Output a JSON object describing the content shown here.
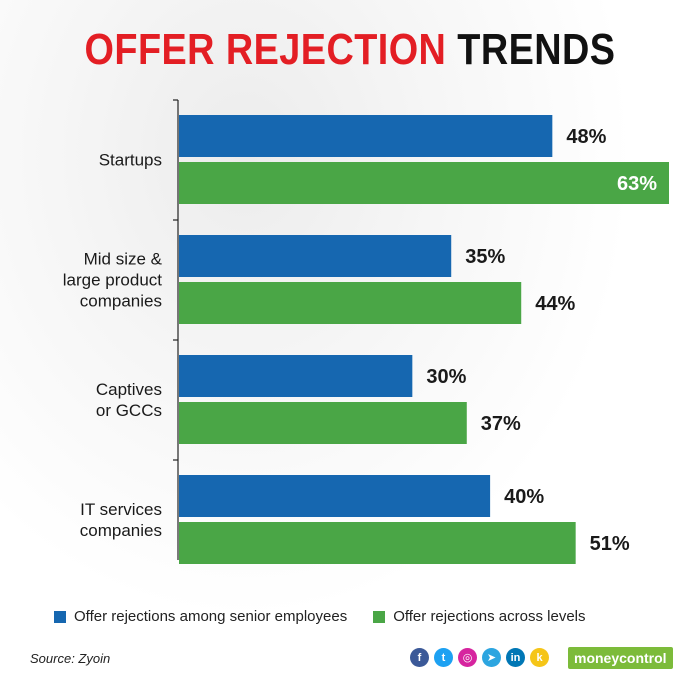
{
  "title": {
    "part1": "OFFER REJECTION",
    "part2": "TRENDS"
  },
  "chart_data": {
    "type": "bar",
    "orientation": "horizontal",
    "categories": [
      [
        "Startups"
      ],
      [
        "Mid size &",
        "large product",
        "companies"
      ],
      [
        "Captives",
        "or GCCs"
      ],
      [
        "IT services",
        "companies"
      ]
    ],
    "series": [
      {
        "name": "Offer rejections among senior employees",
        "values": [
          48,
          35,
          30,
          40
        ],
        "color": "#1667b0"
      },
      {
        "name": "Offer rejections across levels",
        "values": [
          63,
          44,
          37,
          51
        ],
        "color": "#4aa646"
      }
    ],
    "value_suffix": "%",
    "xlim": [
      0,
      63
    ],
    "grid": false,
    "legend_position": "bottom"
  },
  "source": "Source: Zyoin",
  "brand": {
    "name": "moneycontrol",
    "color": "#7cbb3a"
  },
  "social_icons": [
    {
      "name": "facebook-icon",
      "glyph": "f",
      "color": "#3b5998"
    },
    {
      "name": "twitter-icon",
      "glyph": "t",
      "color": "#1da1f2"
    },
    {
      "name": "instagram-icon",
      "glyph": "◎",
      "color": "#d6249f"
    },
    {
      "name": "telegram-icon",
      "glyph": "➤",
      "color": "#2ca5e0"
    },
    {
      "name": "linkedin-icon",
      "glyph": "in",
      "color": "#0077b5"
    },
    {
      "name": "koo-icon",
      "glyph": "k",
      "color": "#f5c518"
    }
  ]
}
